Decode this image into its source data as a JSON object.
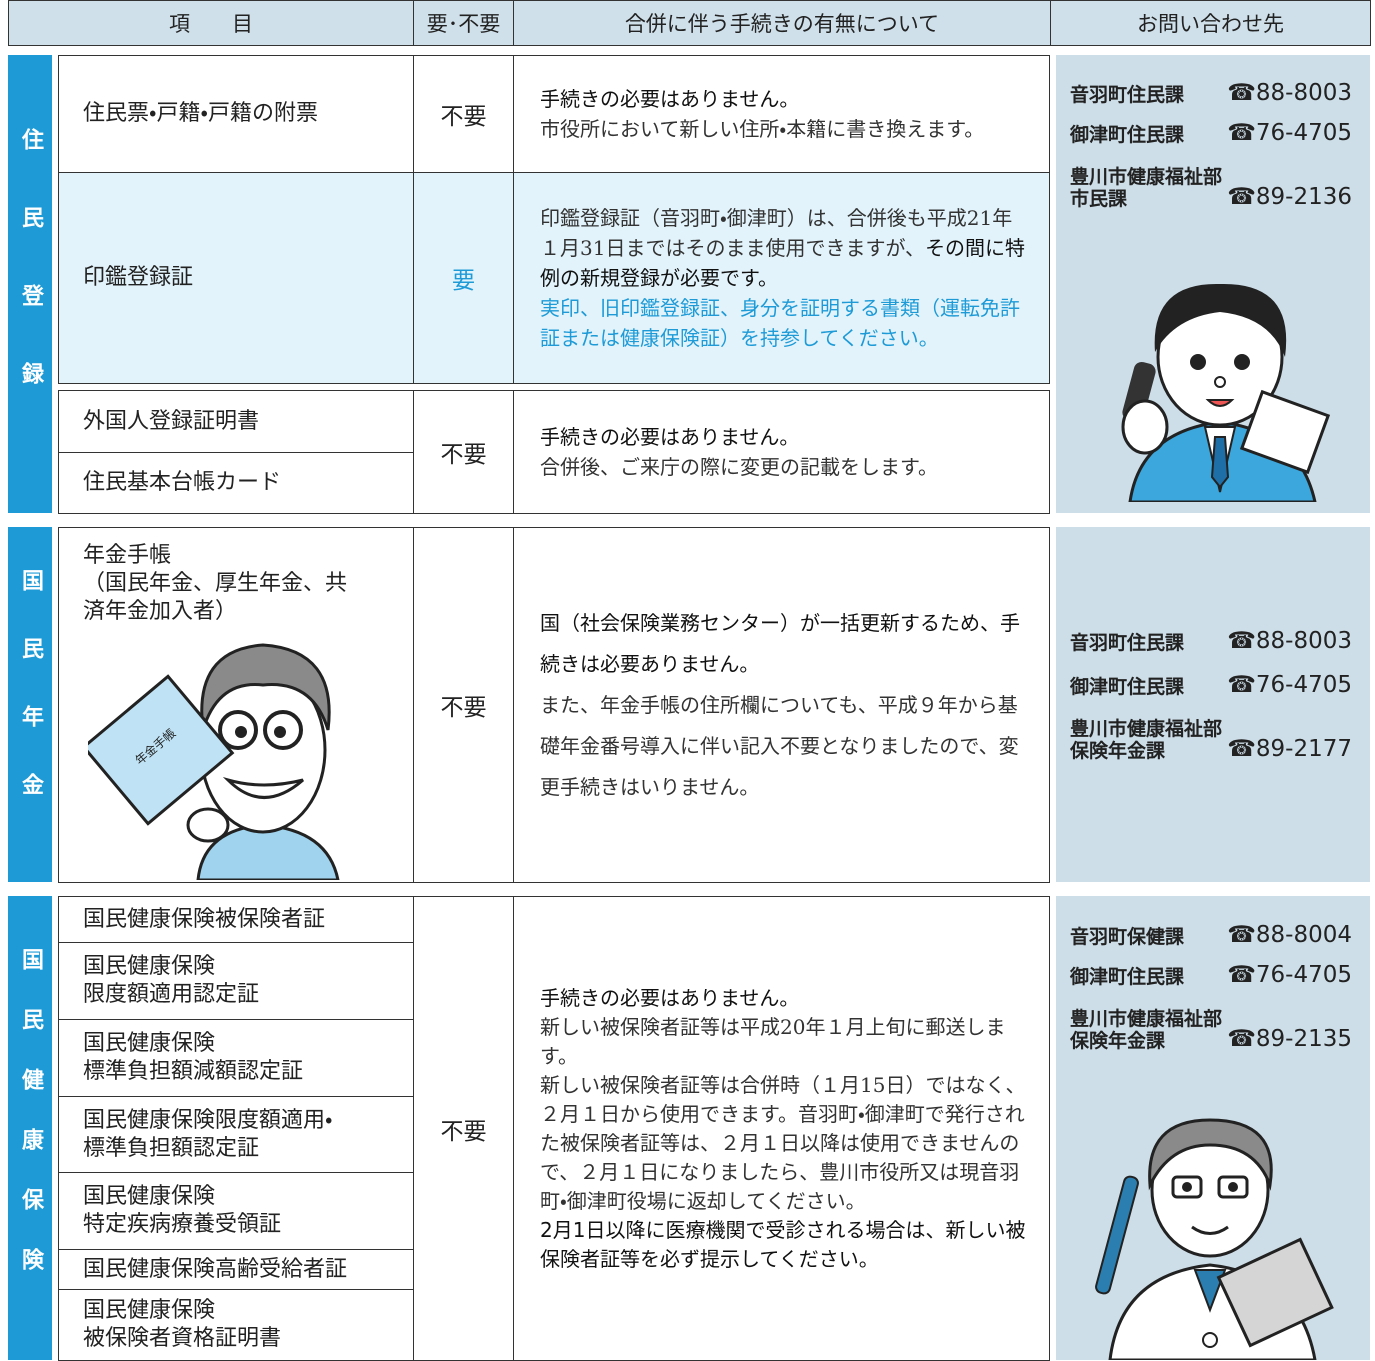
{
  "header": {
    "item": "項　　目",
    "need": "要･不要",
    "description": "合併に伴う手続きの有無について",
    "contact": "お問い合わせ先"
  },
  "sections": [
    {
      "label": "住民登録",
      "rows": [
        {
          "items": [
            "住民票・戸籍・戸籍の附票"
          ],
          "need": "不要",
          "description": [
            [
              {
                "text": "手続きの必要はありません。",
                "style": "sans"
              }
            ],
            [
              {
                "text": "市役所において新しい住所・本籍に書き換えます。",
                "style": "serif"
              }
            ]
          ]
        },
        {
          "items": [
            "印鑑登録証"
          ],
          "need": "要",
          "highlight": true,
          "description": [
            [
              {
                "text": "印鑑登録証（音羽町・御津町）は、合併後も平成21年１月31日まではそのまま使用できますが、",
                "style": "serif"
              },
              {
                "text": "その間に特例の新規登録が必要です。",
                "style": "sans"
              }
            ],
            [
              {
                "text": "実印、旧印鑑登録証、身分を証明する書類（運転免許証または健康保険証）を持参してください。",
                "style": "blue"
              }
            ]
          ]
        },
        {
          "items": [
            "外国人登録証明書",
            "住民基本台帳カード"
          ],
          "need": "不要",
          "description": [
            [
              {
                "text": "手続きの必要はありません。",
                "style": "sans"
              }
            ],
            [
              {
                "text": "合併後、ご来庁の際に変更の記載をします。",
                "style": "serif"
              }
            ]
          ]
        }
      ],
      "contacts": [
        {
          "name": "音羽町住民課",
          "phone": "☎88-8003"
        },
        {
          "name": "御津町住民課",
          "phone": "☎76-4705"
        },
        {
          "name": "豊川市健康福祉部\n市民課",
          "phone": "☎89-2136"
        }
      ]
    },
    {
      "label": "国民年金",
      "rows": [
        {
          "items": [
            "年金手帳\n（国民年金、厚生年金、共\n済年金加入者）"
          ],
          "need": "不要",
          "description": [
            [
              {
                "text": "国（社会保険業務センター）が一括更新するため、手続きは必要ありません。",
                "style": "sans"
              }
            ],
            [
              {
                "text": "また、年金手帳の住所欄についても、平成９年から基礎年金番号導入に伴い記入不要となりましたので、変更手続きはいりません。",
                "style": "serif"
              }
            ]
          ]
        }
      ],
      "figure_text": "年金手帳",
      "contacts": [
        {
          "name": "音羽町住民課",
          "phone": "☎88-8003"
        },
        {
          "name": "御津町住民課",
          "phone": "☎76-4705"
        },
        {
          "name": "豊川市健康福祉部\n保険年金課",
          "phone": "☎89-2177"
        }
      ]
    },
    {
      "label": "国民健康保険",
      "rows": [
        {
          "items": [
            "国民健康保険被保険者証",
            "国民健康保険\n限度額適用認定証",
            "国民健康保険\n標準負担額減額認定証",
            "国民健康保険限度額適用・\n標準負担額認定証",
            "国民健康保険\n特定疾病療養受領証",
            "国民健康保険高齢受給者証",
            "国民健康保険\n被保険者資格証明書"
          ],
          "need": "不要",
          "description": [
            [
              {
                "text": "手続きの必要はありません。",
                "style": "sans"
              }
            ],
            [
              {
                "text": "新しい被保険者証等は平成20年１月上旬に郵送します。",
                "style": "serif"
              }
            ],
            [
              {
                "text": "新しい被保険者証等は合併時（１月15日）ではなく、２月１日から使用できます。音羽町・御津町で発行された被保険者証等は、２月１日以降は使用できませんので、２月１日になりましたら、豊川市役所又は現音羽町・御津町役場に返却してください。",
                "style": "serif"
              }
            ],
            [
              {
                "text": "2月1日以降に医療機関で受診される場合は、新しい被保険者証等を必ず提示してください。",
                "style": "sans"
              }
            ]
          ]
        }
      ],
      "contacts": [
        {
          "name": "音羽町保健課",
          "phone": "☎88-8004"
        },
        {
          "name": "御津町住民課",
          "phone": "☎76-4705"
        },
        {
          "name": "豊川市健康福祉部\n保険年金課",
          "phone": "☎89-2135"
        }
      ]
    }
  ]
}
